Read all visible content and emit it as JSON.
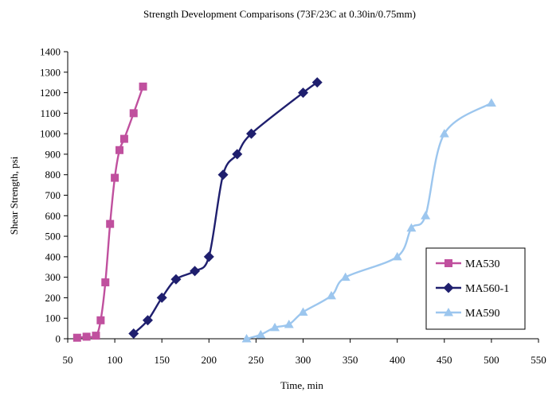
{
  "chart_data": {
    "type": "line",
    "title": "Strength Development Comparisons (73F/23C at 0.30in/0.75mm)",
    "xlabel": "Time, min",
    "ylabel": "Shear Strength, psi",
    "xlim": [
      50,
      550
    ],
    "ylim": [
      0,
      1400
    ],
    "x_ticks": [
      50,
      100,
      150,
      200,
      250,
      300,
      350,
      400,
      450,
      500,
      550
    ],
    "y_ticks": [
      0,
      100,
      200,
      300,
      400,
      500,
      600,
      700,
      800,
      900,
      1000,
      1100,
      1200,
      1300,
      1400
    ],
    "grid": false,
    "legend_position": "right",
    "series": [
      {
        "name": "MA530",
        "color": "#C0509E",
        "marker": "square",
        "points": [
          [
            60,
            5
          ],
          [
            70,
            10
          ],
          [
            80,
            15
          ],
          [
            85,
            90
          ],
          [
            90,
            275
          ],
          [
            95,
            560
          ],
          [
            100,
            785
          ],
          [
            105,
            920
          ],
          [
            110,
            975
          ],
          [
            120,
            1100
          ],
          [
            130,
            1230
          ]
        ]
      },
      {
        "name": "MA560-1",
        "color": "#1F1F6E",
        "marker": "diamond",
        "points": [
          [
            120,
            25
          ],
          [
            135,
            90
          ],
          [
            150,
            200
          ],
          [
            165,
            290
          ],
          [
            185,
            330
          ],
          [
            200,
            400
          ],
          [
            215,
            800
          ],
          [
            230,
            900
          ],
          [
            245,
            1000
          ],
          [
            300,
            1200
          ],
          [
            315,
            1250
          ]
        ]
      },
      {
        "name": "MA590",
        "color": "#9CC6EE",
        "marker": "triangle",
        "points": [
          [
            240,
            0
          ],
          [
            255,
            20
          ],
          [
            270,
            55
          ],
          [
            285,
            70
          ],
          [
            300,
            130
          ],
          [
            330,
            210
          ],
          [
            345,
            300
          ],
          [
            400,
            400
          ],
          [
            415,
            540
          ],
          [
            430,
            600
          ],
          [
            450,
            1000
          ],
          [
            500,
            1150
          ]
        ]
      }
    ]
  }
}
